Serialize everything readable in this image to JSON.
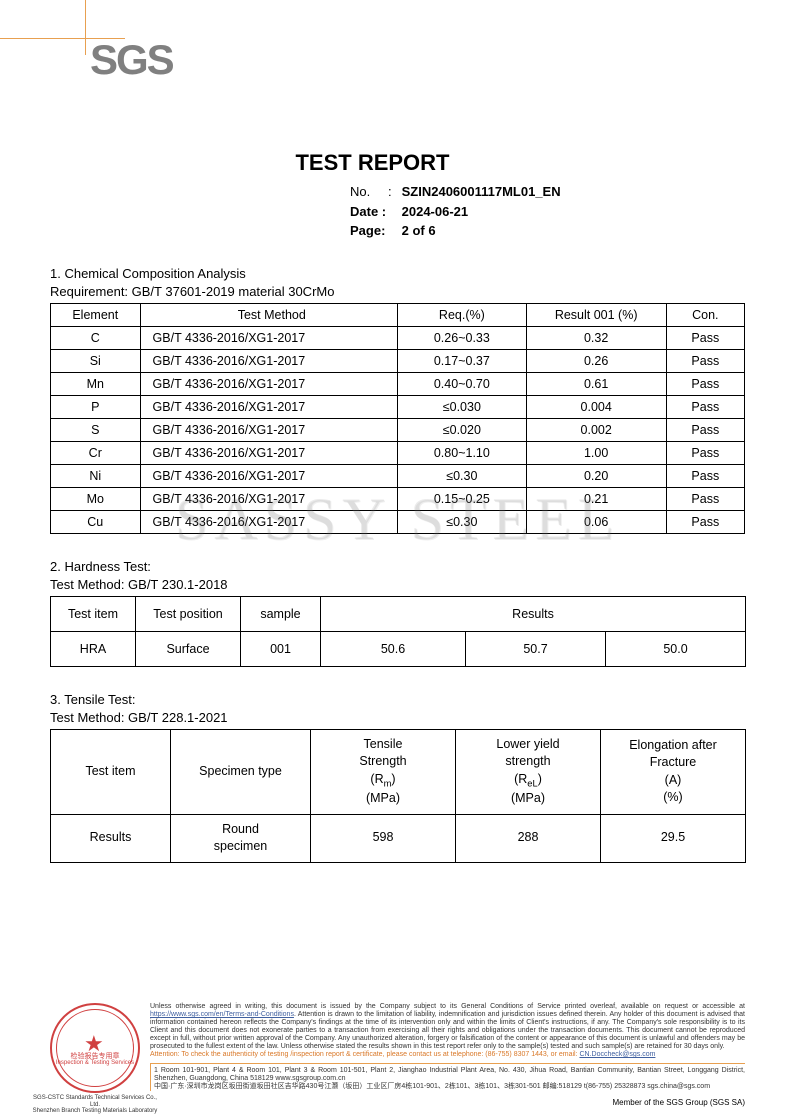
{
  "logo": "SGS",
  "title": "TEST REPORT",
  "meta": {
    "no_label": "No.",
    "no_value": "SZIN2406001117ML01_EN",
    "date_label": "Date :",
    "date_value": "2024-06-21",
    "page_label": "Page:",
    "page_value": "2 of 6"
  },
  "watermark": "SASSY STEEL",
  "section1": {
    "heading": "1. Chemical Composition Analysis",
    "requirement": "Requirement: GB/T 37601-2019 material 30CrMo",
    "headers": [
      "Element",
      "Test Method",
      "Req.(%)",
      "Result 001 (%)",
      "Con."
    ],
    "rows": [
      [
        "C",
        "GB/T 4336-2016/XG1-2017",
        "0.26~0.33",
        "0.32",
        "Pass"
      ],
      [
        "Si",
        "GB/T 4336-2016/XG1-2017",
        "0.17~0.37",
        "0.26",
        "Pass"
      ],
      [
        "Mn",
        "GB/T 4336-2016/XG1-2017",
        "0.40~0.70",
        "0.61",
        "Pass"
      ],
      [
        "P",
        "GB/T 4336-2016/XG1-2017",
        "≤0.030",
        "0.004",
        "Pass"
      ],
      [
        "S",
        "GB/T 4336-2016/XG1-2017",
        "≤0.020",
        "0.002",
        "Pass"
      ],
      [
        "Cr",
        "GB/T 4336-2016/XG1-2017",
        "0.80~1.10",
        "1.00",
        "Pass"
      ],
      [
        "Ni",
        "GB/T 4336-2016/XG1-2017",
        "≤0.30",
        "0.20",
        "Pass"
      ],
      [
        "Mo",
        "GB/T 4336-2016/XG1-2017",
        "0.15~0.25",
        "0.21",
        "Pass"
      ],
      [
        "Cu",
        "GB/T 4336-2016/XG1-2017",
        "≤0.30",
        "0.06",
        "Pass"
      ]
    ]
  },
  "section2": {
    "heading": "2. Hardness Test:",
    "method": "Test Method: GB/T 230.1-2018",
    "headers": [
      "Test item",
      "Test position",
      "sample",
      "Results"
    ],
    "row": [
      "HRA",
      "Surface",
      "001",
      "50.6",
      "50.7",
      "50.0"
    ]
  },
  "section3": {
    "heading": "3. Tensile Test:",
    "method": "Test Method: GB/T 228.1-2021",
    "h1": "Test item",
    "h2": "Specimen type",
    "h3a": "Tensile",
    "h3b": "Strength",
    "h3c": "(Rₘ)",
    "h3d": "(MPa)",
    "h4a": "Lower yield",
    "h4b": "strength",
    "h4c": "(R_eL)",
    "h4d": "(MPa)",
    "h5a": "Elongation after",
    "h5b": "Fracture",
    "h5c": "(A)",
    "h5d": "(%)",
    "row": [
      "Results",
      "Round specimen",
      "598",
      "288",
      "29.5"
    ]
  },
  "footer": {
    "disclaimer1": "Unless otherwise agreed in writing, this document is issued by the Company subject to its General Conditions of Service printed overleaf, available on request or accessible at ",
    "link1": "https://www.sgs.com/en/Terms-and-Conditions",
    "disclaimer2": ". Attention is drawn to the limitation of liability, indemnification and jurisdiction issues defined therein. Any holder of this document is advised that information contained hereon reflects the Company's findings at the time of its intervention only and within the limits of Client's instructions, if any. The Company's sole responsibility is to its Client and this document does not exonerate parties to a transaction from exercising all their rights and obligations under the transaction documents. This document cannot be reproduced except in full, without prior written approval of the Company. Any unauthorized alteration, forgery or falsification of the content or appearance of this document is unlawful and offenders may be prosecuted to the fullest extent of the law. Unless otherwise stated the results shown in this test report refer only to the sample(s) tested and such sample(s) are retained for 30 days only.",
    "attention": "Attention: To check the authenticity of testing /inspection report & certificate, please contact us at telephone: (86-755) 8307 1443, or email: ",
    "email": "CN.Doccheck@sgs.com",
    "addr_en": "1 Room 101-901, Plant 4 & Room 101, Plant 3 & Room 101-501, Plant 2, Jianghao Industrial Plant Area, No. 430, Jihua Road, Bantian Community, Bantian Street, Longgang District, Shenzhen, Guangdong, China 518129   www.sgsgroup.com.cn",
    "addr_cn": "中国·广东·深圳市龙岗区坂田街道坂田社区吉华路430号江灏（坂田）工业区厂房4栋101-901、2栋101、3栋101、3栋301-501 邮编:518129     t(86-755) 25328873   sgs.china@sgs.com",
    "stamp_text1": "检验报告专用章",
    "stamp_text2": "Inspection & Testing Services",
    "stamp_sub1": "SGS-CSTC Standards Technical Services Co., Ltd.",
    "stamp_sub2": "Shenzhen Branch Testing Materials Laboratory"
  },
  "member": "Member of the SGS Group (SGS SA)",
  "colors": {
    "accent": "#e8a050",
    "stamp": "#d04040",
    "text": "#000000"
  }
}
